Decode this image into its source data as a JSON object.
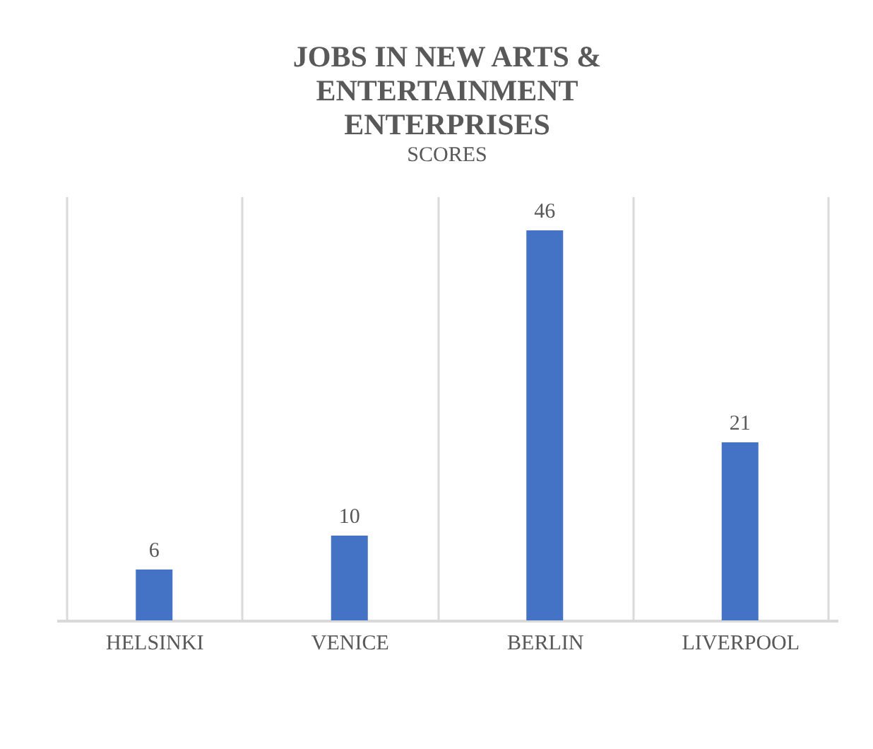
{
  "chart_data": {
    "type": "bar",
    "title": "JOBS IN NEW ARTS & ENTERTAINMENT ENTERPRISES",
    "subtitle": "SCORES",
    "categories": [
      "HELSINKI",
      "VENICE",
      "BERLIN",
      "LIVERPOOL"
    ],
    "values": [
      6,
      10,
      46,
      21
    ],
    "color": "#4472c4",
    "ylim": [
      0,
      50
    ],
    "grid": "x",
    "data_labels": true,
    "tick_labels": "x"
  }
}
